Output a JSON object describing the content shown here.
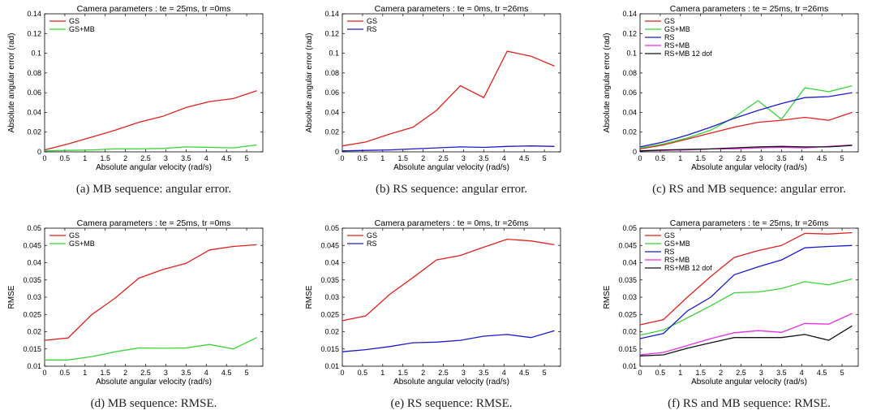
{
  "chart_data": [
    {
      "type": "line",
      "title": "Camera parameters : te = 25ms, tr =0ms",
      "xlabel": "Absolute angular velocity (rad/s)",
      "ylabel": "Absolute angular error (rad)",
      "xlim": [
        0,
        5.4
      ],
      "ylim": [
        0,
        0.14
      ],
      "xticks": [
        "0",
        "0.5",
        "1",
        "1.5",
        "2",
        "2.5",
        "3",
        "3.5",
        "4",
        "4.5",
        "5"
      ],
      "yticks": [
        "0",
        "0.02",
        "0.04",
        "0.06",
        "0.08",
        "0.1",
        "0.12",
        "0.14"
      ],
      "legend": "top-left",
      "caption": "(a)  MB sequence: angular error.",
      "x": [
        0,
        0.58,
        1.17,
        1.75,
        2.33,
        2.92,
        3.5,
        4.08,
        4.67,
        5.25
      ],
      "series": [
        {
          "name": "GS",
          "color": "#e0211d",
          "values": [
            0.002,
            0.008,
            0.015,
            0.022,
            0.03,
            0.036,
            0.045,
            0.051,
            0.054,
            0.062
          ]
        },
        {
          "name": "GS+MB",
          "color": "#3ad43a",
          "values": [
            0.001,
            0.0015,
            0.002,
            0.003,
            0.003,
            0.0035,
            0.005,
            0.0045,
            0.004,
            0.007
          ]
        }
      ]
    },
    {
      "type": "line",
      "title": "Camera parameters : te = 0ms, tr =26ms",
      "xlabel": "Absolute angular velocity (rad/s)",
      "ylabel": "Absolute angular error (rad)",
      "xlim": [
        0,
        5.4
      ],
      "ylim": [
        0,
        0.14
      ],
      "xticks": [
        "0",
        "0.5",
        "1",
        "1.5",
        "2",
        "2.5",
        "3",
        "3.5",
        "4",
        "4.5",
        "5"
      ],
      "yticks": [
        "0",
        "0.02",
        "0.04",
        "0.06",
        "0.08",
        "0.1",
        "0.12",
        "0.14"
      ],
      "legend": "top-left",
      "caption": "(b)  RS sequence: angular error.",
      "x": [
        0,
        0.58,
        1.17,
        1.75,
        2.33,
        2.92,
        3.5,
        4.08,
        4.67,
        5.25
      ],
      "series": [
        {
          "name": "GS",
          "color": "#e0211d",
          "values": [
            0.006,
            0.01,
            0.018,
            0.025,
            0.042,
            0.067,
            0.055,
            0.102,
            0.097,
            0.087
          ]
        },
        {
          "name": "RS",
          "color": "#1a1ad0",
          "values": [
            0.001,
            0.0015,
            0.002,
            0.003,
            0.004,
            0.005,
            0.0045,
            0.0055,
            0.006,
            0.0055
          ]
        }
      ]
    },
    {
      "type": "line",
      "title": "Camera parameters : te = 25ms, tr =26ms",
      "xlabel": "Absolute angular velocity (rad/s)",
      "ylabel": "Absolute angular error (rad)",
      "xlim": [
        0,
        5.4
      ],
      "ylim": [
        0,
        0.14
      ],
      "xticks": [
        "0",
        "0.5",
        "1",
        "1.5",
        "2",
        "2.5",
        "3",
        "3.5",
        "4",
        "4.5",
        "5"
      ],
      "yticks": [
        "0",
        "0.02",
        "0.04",
        "0.06",
        "0.08",
        "0.1",
        "0.12",
        "0.14"
      ],
      "legend": "top-left",
      "caption": "(c)  RS and MB sequence: angular error.",
      "x": [
        0,
        0.58,
        1.17,
        1.75,
        2.33,
        2.92,
        3.5,
        4.08,
        4.67,
        5.25
      ],
      "series": [
        {
          "name": "GS",
          "color": "#e0211d",
          "values": [
            0.003,
            0.007,
            0.013,
            0.019,
            0.025,
            0.03,
            0.032,
            0.035,
            0.032,
            0.04
          ]
        },
        {
          "name": "GS+MB",
          "color": "#3ad43a",
          "values": [
            0.004,
            0.008,
            0.014,
            0.022,
            0.035,
            0.052,
            0.033,
            0.065,
            0.061,
            0.067
          ]
        },
        {
          "name": "RS",
          "color": "#1a1ad0",
          "values": [
            0.005,
            0.01,
            0.017,
            0.025,
            0.034,
            0.042,
            0.049,
            0.055,
            0.056,
            0.06
          ]
        },
        {
          "name": "RS+MB",
          "color": "#e62ee6",
          "values": [
            0.001,
            0.0015,
            0.002,
            0.003,
            0.003,
            0.004,
            0.0045,
            0.004,
            0.0055,
            0.007
          ]
        },
        {
          "name": "RS+MB 12 dof",
          "color": "#111111",
          "values": [
            0.001,
            0.002,
            0.0025,
            0.003,
            0.004,
            0.005,
            0.0055,
            0.005,
            0.005,
            0.0065
          ]
        }
      ]
    },
    {
      "type": "line",
      "title": "Camera parameters : te = 25ms, tr =0ms",
      "xlabel": "Absolute angular velocity (rad/s)",
      "ylabel": "RMSE",
      "xlim": [
        0,
        5.4
      ],
      "ylim": [
        0.01,
        0.05
      ],
      "xticks": [
        "0",
        "0.5",
        "1",
        "1.5",
        "2",
        "2.5",
        "3",
        "3.5",
        "4",
        "4.5",
        "5"
      ],
      "yticks": [
        "0.01",
        "0.015",
        "0.02",
        "0.025",
        "0.03",
        "0.035",
        "0.04",
        "0.045",
        "0.05"
      ],
      "legend": "top-left",
      "caption": "(d)  MB sequence: RMSE.",
      "x": [
        0,
        0.58,
        1.17,
        1.75,
        2.33,
        2.92,
        3.5,
        4.08,
        4.67,
        5.25
      ],
      "series": [
        {
          "name": "GS",
          "color": "#e0211d",
          "values": [
            0.0175,
            0.0182,
            0.025,
            0.0298,
            0.0355,
            0.038,
            0.0398,
            0.0437,
            0.0447,
            0.0452
          ]
        },
        {
          "name": "GS+MB",
          "color": "#3ad43a",
          "values": [
            0.0118,
            0.0118,
            0.0128,
            0.0142,
            0.0153,
            0.0152,
            0.0153,
            0.0163,
            0.015,
            0.0183
          ]
        }
      ]
    },
    {
      "type": "line",
      "title": "Camera parameters : te = 0ms, tr =26ms",
      "xlabel": "Absolute angular velocity (rad/s)",
      "ylabel": "RMSE",
      "xlim": [
        0,
        5.4
      ],
      "ylim": [
        0.01,
        0.05
      ],
      "xticks": [
        "0",
        "0.5",
        "1",
        "1.5",
        "2",
        "2.5",
        "3",
        "3.5",
        "4",
        "4.5",
        "5"
      ],
      "yticks": [
        "0.01",
        "0.015",
        "0.02",
        "0.025",
        "0.03",
        "0.035",
        "0.04",
        "0.045",
        "0.05"
      ],
      "legend": "top-left",
      "caption": "(e)  RS sequence: RMSE.",
      "x": [
        0,
        0.58,
        1.17,
        1.75,
        2.33,
        2.92,
        3.5,
        4.08,
        4.67,
        5.25
      ],
      "series": [
        {
          "name": "GS",
          "color": "#e0211d",
          "values": [
            0.0232,
            0.0246,
            0.0308,
            0.0357,
            0.0408,
            0.0421,
            0.0445,
            0.0468,
            0.0463,
            0.0452
          ]
        },
        {
          "name": "RS",
          "color": "#1a1ad0",
          "values": [
            0.0142,
            0.0148,
            0.0157,
            0.0168,
            0.017,
            0.0175,
            0.0187,
            0.0192,
            0.0183,
            0.0203
          ]
        }
      ]
    },
    {
      "type": "line",
      "title": "Camera parameters : te = 25ms, tr =26ms",
      "xlabel": "Absolute angular velocity (rad/s)",
      "ylabel": "RMSE",
      "xlim": [
        0,
        5.4
      ],
      "ylim": [
        0.01,
        0.05
      ],
      "xticks": [
        "0",
        "0.5",
        "1",
        "1.5",
        "2",
        "2.5",
        "3",
        "3.5",
        "4",
        "4.5",
        "5"
      ],
      "yticks": [
        "0.01",
        "0.015",
        "0.02",
        "0.025",
        "0.03",
        "0.035",
        "0.04",
        "0.045",
        "0.05"
      ],
      "legend": "top-left",
      "caption": "(f)  RS and MB sequence: RMSE.",
      "x": [
        0,
        0.58,
        1.17,
        1.75,
        2.33,
        2.92,
        3.5,
        4.08,
        4.67,
        5.25
      ],
      "series": [
        {
          "name": "GS",
          "color": "#e0211d",
          "values": [
            0.022,
            0.0235,
            0.03,
            0.036,
            0.0415,
            0.0435,
            0.045,
            0.0485,
            0.0483,
            0.0487
          ]
        },
        {
          "name": "GS+MB",
          "color": "#3ad43a",
          "values": [
            0.019,
            0.0205,
            0.024,
            0.0275,
            0.0313,
            0.0315,
            0.0325,
            0.0345,
            0.0336,
            0.0353
          ]
        },
        {
          "name": "RS",
          "color": "#1a1ad0",
          "values": [
            0.018,
            0.0195,
            0.026,
            0.03,
            0.0365,
            0.0388,
            0.0408,
            0.0443,
            0.0447,
            0.045
          ]
        },
        {
          "name": "RS+MB",
          "color": "#e62ee6",
          "values": [
            0.0133,
            0.014,
            0.016,
            0.018,
            0.0197,
            0.0203,
            0.0198,
            0.0224,
            0.0222,
            0.0253
          ]
        },
        {
          "name": "RS+MB 12 dof",
          "color": "#111111",
          "values": [
            0.013,
            0.0133,
            0.0152,
            0.0168,
            0.0183,
            0.0183,
            0.0183,
            0.0192,
            0.0175,
            0.0217
          ]
        }
      ]
    }
  ]
}
